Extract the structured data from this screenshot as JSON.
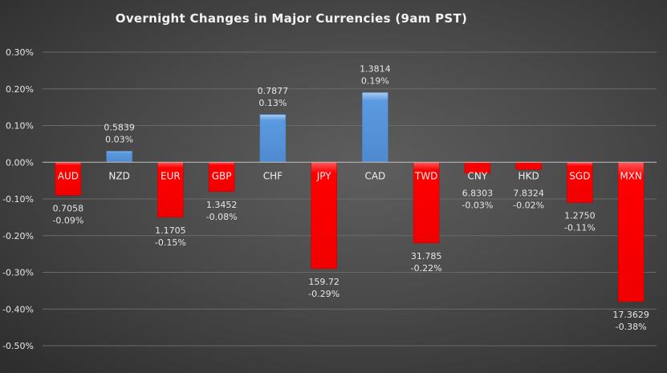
{
  "chart_data": {
    "type": "bar",
    "title": "Overnight Changes in Major Currencies (9am PST)",
    "xlabel": "",
    "ylabel": "",
    "ylim": [
      -0.5,
      0.3
    ],
    "yticks": [
      0.3,
      0.2,
      0.1,
      0.0,
      -0.1,
      -0.2,
      -0.3,
      -0.4,
      -0.5
    ],
    "ytick_labels": [
      "0.30%",
      "0.20%",
      "0.10%",
      "0.00%",
      "-0.10%",
      "-0.20%",
      "-0.30%",
      "-0.40%",
      "-0.50%"
    ],
    "grid": true,
    "categories": [
      "AUD",
      "NZD",
      "EUR",
      "GBP",
      "CHF",
      "JPY",
      "CAD",
      "TWD",
      "CNY",
      "HKD",
      "SGD",
      "MXN"
    ],
    "values": [
      -0.09,
      0.03,
      -0.15,
      -0.08,
      0.13,
      -0.29,
      0.19,
      -0.22,
      -0.03,
      -0.02,
      -0.11,
      -0.38
    ],
    "value_labels": [
      "-0.09%",
      "0.03%",
      "-0.15%",
      "-0.08%",
      "0.13%",
      "-0.29%",
      "0.19%",
      "-0.22%",
      "-0.03%",
      "-0.02%",
      "-0.11%",
      "-0.38%"
    ],
    "rates": [
      "0.7058",
      "0.5839",
      "1.1705",
      "1.3452",
      "0.7877",
      "159.72",
      "1.3814",
      "31.785",
      "6.8303",
      "7.8324",
      "1.2750",
      "17.3629"
    ],
    "colors": {
      "positive": "#5b9ae0",
      "negative": "#ff0000",
      "text": "#e6e6e6",
      "grid": "#6a6a6a",
      "axis": "#bfbfbf"
    }
  }
}
